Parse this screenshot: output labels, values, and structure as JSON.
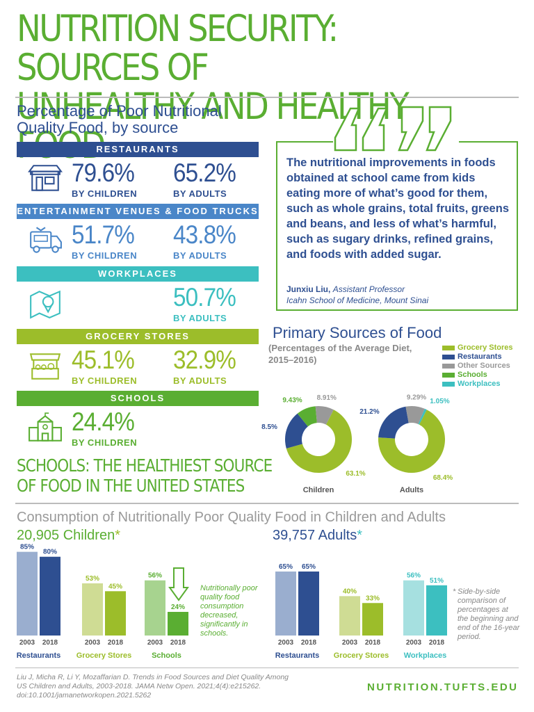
{
  "title_line1": "NUTRITION SECURITY: SOURCES OF",
  "title_line2": "UNHEALTHY AND HEALTHY FOOD",
  "poor_quality": {
    "title_line1": "Percentage of Poor Nutritional",
    "title_line2": "Quality Food, by source",
    "rows": [
      {
        "label": "RESTAURANTS",
        "color": "#2e4f91",
        "text_color": "#2e4f91",
        "icon": "storefront-icon",
        "children": "79.6%",
        "adults": "65.2%"
      },
      {
        "label": "ENTERTAINMENT VENUES & FOOD TRUCKS",
        "color": "#4a86c8",
        "text_color": "#4a86c8",
        "icon": "food-truck-icon",
        "children": "51.7%",
        "adults": "43.8%"
      },
      {
        "label": "WORKPLACES",
        "color": "#3cbfc0",
        "text_color": "#3cbfc0",
        "icon": "map-pin-icon",
        "children": "",
        "adults": "50.7%"
      },
      {
        "label": "GROCERY STORES",
        "color": "#9cbd2a",
        "text_color": "#9cbd2a",
        "icon": "grocery-stall-icon",
        "children": "45.1%",
        "adults": "32.9%"
      },
      {
        "label": "SCHOOLS",
        "color": "#5aae32",
        "text_color": "#5aae32",
        "icon": "school-building-icon",
        "children": "24.4%",
        "adults": ""
      }
    ],
    "by_children": "BY CHILDREN",
    "by_adults": "BY ADULTS"
  },
  "quote": {
    "text": "The nutritional improvements in foods obtained at school came from kids eating more of what’s good for them, such as whole grains, total fruits, greens and beans, and less of what’s harmful, such as sugary drinks, refined grains, and foods with added sugar.",
    "author_name": "Junxiu Liu,",
    "author_title": "Assistant Professor",
    "author_affil": "Icahn School of Medicine, Mount Sinai"
  },
  "callout_line1": "SCHOOLS: THE HEALTHIEST SOURCE",
  "callout_line2": "OF FOOD IN THE UNITED STATES",
  "footer": {
    "citation_line1": "Liu J, Micha R, Li Y, Mozaffarian D. Trends in Food Sources and Diet Quality Among",
    "citation_line2": "US Children and Adults, 2003-2018. JAMA Netw Open. 2021;4(4):e215262.",
    "citation_line3": "doi:10.1001/jamanetworkopen.2021.5262",
    "url": "NUTRITION.TUFTS.EDU"
  },
  "chart_data": [
    {
      "type": "pie",
      "title": "Primary Sources of Food",
      "subtitle": "(Percentages of the Average Diet, 2015–2016)",
      "legend": [
        "Grocery Stores",
        "Restaurants",
        "Other Sources",
        "Schools",
        "Workplaces"
      ],
      "legend_colors": [
        "#9cbd2a",
        "#2e4f91",
        "#999999",
        "#5aae32",
        "#3cbfc0"
      ],
      "charts": [
        {
          "name": "Children",
          "slices": [
            {
              "label": "Grocery Stores",
              "value": 63.1,
              "text": "63.1%"
            },
            {
              "label": "Restaurants",
              "value": 18.5,
              "text": "18.5%"
            },
            {
              "label": "Schools",
              "value": 9.43,
              "text": "9.43%"
            },
            {
              "label": "Other Sources",
              "value": 8.91,
              "text": "8.91%"
            }
          ]
        },
        {
          "name": "Adults",
          "slices": [
            {
              "label": "Grocery Stores",
              "value": 68.4,
              "text": "68.4%"
            },
            {
              "label": "Restaurants",
              "value": 21.2,
              "text": "21.2%"
            },
            {
              "label": "Other Sources",
              "value": 9.29,
              "text": "9.29%"
            },
            {
              "label": "Workplaces",
              "value": 1.05,
              "text": "1.05%"
            }
          ]
        }
      ]
    },
    {
      "type": "bar",
      "title": "Consumption of Nutritionally Poor Quality Food in Children and Adults",
      "group_title": "20,905 Children",
      "asterisk": "*",
      "ylim": [
        0,
        100
      ],
      "x_labels": [
        "2003",
        "2018"
      ],
      "groups": [
        {
          "name": "Restaurants",
          "colors": [
            "#9aaecf",
            "#2e4f91"
          ],
          "name_color": "#2e4f91",
          "values": [
            85,
            80
          ],
          "labels": [
            "85%",
            "80%"
          ]
        },
        {
          "name": "Grocery Stores",
          "colors": [
            "#cfdc94",
            "#9cbd2a"
          ],
          "name_color": "#9cbd2a",
          "values": [
            53,
            45
          ],
          "labels": [
            "53%",
            "45%"
          ]
        },
        {
          "name": "Schools",
          "colors": [
            "#a7d38f",
            "#5aae32"
          ],
          "name_color": "#5aae32",
          "values": [
            56,
            24
          ],
          "labels": [
            "56%",
            "24%"
          ]
        }
      ],
      "annotation": "Nutritionally poor quality food consumption decreased, significantly in schools."
    },
    {
      "type": "bar",
      "group_title": "39,757 Adults",
      "asterisk": "*",
      "ylim": [
        0,
        100
      ],
      "x_labels": [
        "2003",
        "2018"
      ],
      "groups": [
        {
          "name": "Restaurants",
          "colors": [
            "#9aaecf",
            "#2e4f91"
          ],
          "name_color": "#2e4f91",
          "values": [
            65,
            65
          ],
          "labels": [
            "65%",
            "65%"
          ]
        },
        {
          "name": "Grocery Stores",
          "colors": [
            "#cfdc94",
            "#9cbd2a"
          ],
          "name_color": "#9cbd2a",
          "values": [
            40,
            33
          ],
          "labels": [
            "40%",
            "33%"
          ]
        },
        {
          "name": "Workplaces",
          "colors": [
            "#a6e0e0",
            "#3cbfc0"
          ],
          "name_color": "#3cbfc0",
          "values": [
            56,
            51
          ],
          "labels": [
            "56%",
            "51%"
          ]
        }
      ],
      "annotation": "Side-by-side comparison of percentages at the beginning and end of the 16-year period."
    }
  ]
}
